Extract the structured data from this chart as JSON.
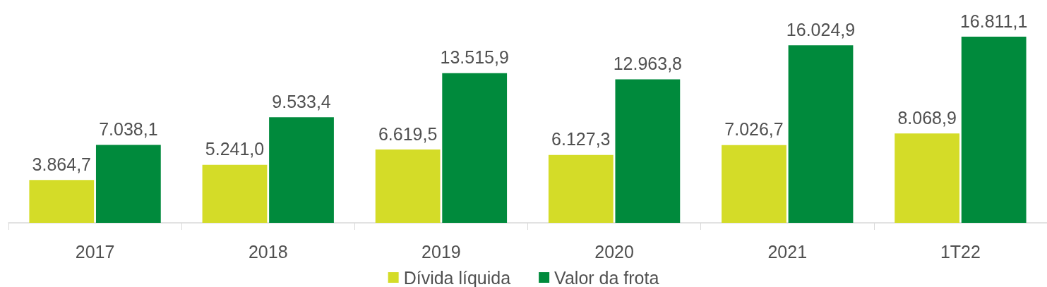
{
  "chart_data": {
    "type": "bar",
    "categories": [
      "2017",
      "2018",
      "2019",
      "2020",
      "2021",
      "1T22"
    ],
    "series": [
      {
        "name": "Dívida líquida",
        "color": "#d4dc28",
        "values": [
          3864.7,
          5241.0,
          6619.5,
          6127.3,
          7026.7,
          8068.9
        ],
        "value_labels": [
          "3.864,7",
          "5.241,0",
          "6.619,5",
          "6.127,3",
          "7.026,7",
          "8.068,9"
        ]
      },
      {
        "name": "Valor da frota",
        "color": "#008a3c",
        "values": [
          7038.1,
          9533.4,
          13515.9,
          12963.8,
          16024.9,
          16811.1
        ],
        "value_labels": [
          "7.038,1",
          "9.533,4",
          "13.515,9",
          "12.963,8",
          "16.024,9",
          "16.811,1"
        ]
      }
    ],
    "legend": "bottom",
    "tick_labels": "x"
  }
}
